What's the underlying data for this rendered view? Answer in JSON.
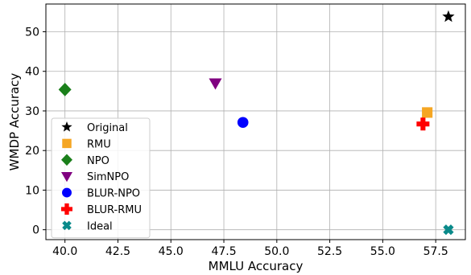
{
  "chart_data": {
    "type": "scatter",
    "title": "",
    "xlabel": "MMLU Accuracy",
    "ylabel": "WMDP Accuracy",
    "xlim": [
      39.1,
      58.9
    ],
    "ylim": [
      -2.5,
      57
    ],
    "xticks": [
      40.0,
      42.5,
      45.0,
      47.5,
      50.0,
      52.5,
      55.0,
      57.5
    ],
    "xtick_labels": [
      "40.0",
      "42.5",
      "45.0",
      "47.5",
      "50.0",
      "52.5",
      "55.0",
      "57.5"
    ],
    "yticks": [
      0,
      10,
      20,
      30,
      40,
      50
    ],
    "ytick_labels": [
      "0",
      "10",
      "20",
      "30",
      "40",
      "50"
    ],
    "grid": true,
    "legend_position": "lower-left",
    "series": [
      {
        "name": "Original",
        "marker": "star",
        "color": "#000000",
        "x": 58.1,
        "y": 53.8
      },
      {
        "name": "RMU",
        "marker": "square",
        "color": "#f5a623",
        "x": 57.1,
        "y": 29.6
      },
      {
        "name": "NPO",
        "marker": "diamond",
        "color": "#1a7f1a",
        "x": 40.0,
        "y": 35.4
      },
      {
        "name": "SimNPO",
        "marker": "triangle-down",
        "color": "#800080",
        "x": 47.1,
        "y": 37.0
      },
      {
        "name": "BLUR-NPO",
        "marker": "circle",
        "color": "#0000ff",
        "x": 48.4,
        "y": 27.1
      },
      {
        "name": "BLUR-RMU",
        "marker": "plus",
        "color": "#ff0000",
        "x": 56.9,
        "y": 26.7
      },
      {
        "name": "Ideal",
        "marker": "x",
        "color": "#0a8a8a",
        "x": 58.1,
        "y": 0.0
      }
    ]
  }
}
